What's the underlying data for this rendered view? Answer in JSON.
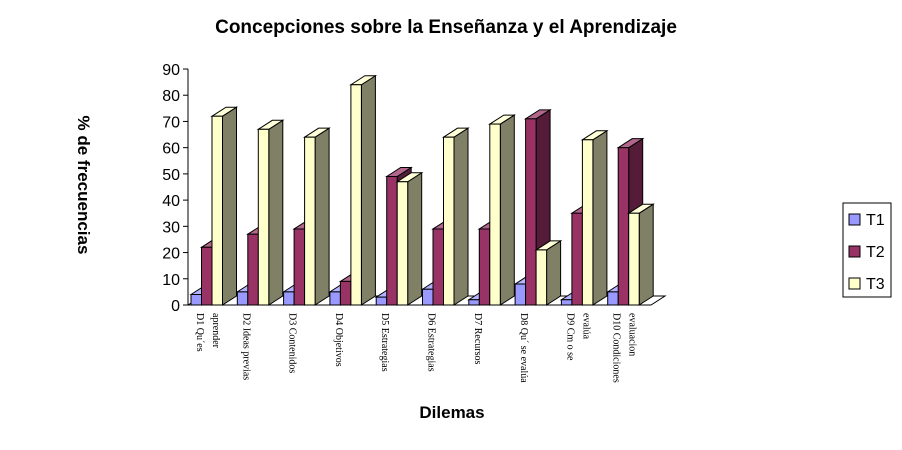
{
  "chart_data": {
    "type": "bar",
    "title": "Concepciones sobre la Enseñanza y  el Aprendizaje",
    "xlabel": "Dilemas",
    "ylabel": "% de frecuencias",
    "ylim": [
      0,
      90
    ],
    "yticks": [
      0,
      10,
      20,
      30,
      40,
      50,
      60,
      70,
      80,
      90
    ],
    "categories": [
      [
        "D1 Qu´es",
        "aprender"
      ],
      [
        "D2 Ideas previas"
      ],
      [
        "D3 Contenidos"
      ],
      [
        "D4 Objetivos"
      ],
      [
        "D5 Estrategias"
      ],
      [
        "D6 Estrategias"
      ],
      [
        "D7 Recursos"
      ],
      [
        "D8 Qu´ se evalúa"
      ],
      [
        "D9 Cm o  se",
        "evalúa"
      ],
      [
        "D10 Condiciones",
        "evaluacion"
      ]
    ],
    "series": [
      {
        "name": "T1",
        "values": [
          4,
          5,
          5,
          5,
          3,
          6,
          2,
          8,
          2,
          5
        ],
        "color": "#9999ff"
      },
      {
        "name": "T2",
        "values": [
          22,
          27,
          29,
          9,
          49,
          29,
          29,
          71,
          35,
          60
        ],
        "color": "#993366"
      },
      {
        "name": "T3",
        "values": [
          72,
          67,
          64,
          84,
          47,
          64,
          69,
          21,
          63,
          35
        ],
        "color": "#ffffcc"
      }
    ],
    "back_color": "#808066",
    "legend_position": "right",
    "grid": false
  }
}
